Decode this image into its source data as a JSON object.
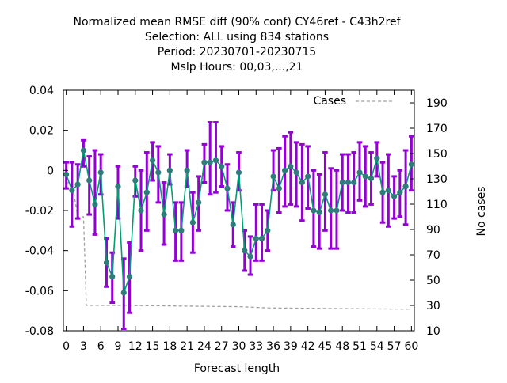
{
  "chart_data": {
    "type": "line",
    "title_lines": [
      "Normalized mean RMSE diff (90% conf) CY46ref - C43h2ref",
      "Selection: ALL using   834 stations",
      "Period: 20230701-20230715",
      "Mslp   Hours:  00,03,...,21"
    ],
    "xlabel": "Forecast length",
    "ylabel_right": "No cases",
    "xlim": [
      -0.5,
      60.5
    ],
    "ylim": [
      -0.08,
      0.04
    ],
    "y2lim": [
      10,
      200
    ],
    "x_ticks": [
      0,
      3,
      6,
      9,
      12,
      15,
      18,
      21,
      24,
      27,
      30,
      33,
      36,
      39,
      42,
      45,
      48,
      51,
      54,
      57,
      60
    ],
    "y_ticks": [
      -0.08,
      -0.06,
      -0.04,
      -0.02,
      0,
      0.02,
      0.04
    ],
    "y_tick_labels": [
      "-0.08",
      "-0.06",
      "-0.04",
      "-0.02",
      "0",
      "0.02",
      "0.04"
    ],
    "y2_ticks": [
      10,
      30,
      50,
      70,
      90,
      110,
      130,
      150,
      170,
      190
    ],
    "legend": {
      "label": "Cases",
      "position": "top-right"
    },
    "colors": {
      "errorbar": "#9400d3",
      "line": "#009e73",
      "marker": "#2e7d7a",
      "cases": "#a0a0a0"
    },
    "series": [
      {
        "x": [
          0,
          1,
          2,
          3,
          4,
          5,
          6,
          7,
          8,
          9,
          10,
          11,
          12,
          13,
          14,
          15,
          16,
          17,
          18,
          19,
          20,
          21,
          22,
          23,
          24,
          25,
          26,
          27,
          28,
          29,
          30,
          31,
          32,
          33,
          34,
          35,
          36,
          37,
          38,
          39,
          40,
          41,
          42,
          43,
          44,
          45,
          46,
          47,
          48,
          49,
          50,
          51,
          52,
          53,
          54,
          55,
          56,
          57,
          58,
          59,
          60
        ],
        "y": [
          -0.002,
          -0.01,
          -0.007,
          0.01,
          -0.005,
          -0.017,
          -0.001,
          -0.046,
          -0.053,
          -0.008,
          -0.061,
          -0.053,
          -0.005,
          -0.02,
          -0.011,
          0.005,
          -0.001,
          -0.022,
          0,
          -0.03,
          -0.03,
          0,
          -0.026,
          -0.016,
          0.004,
          0.004,
          0.005,
          0.002,
          -0.009,
          -0.027,
          -0.001,
          -0.04,
          -0.043,
          -0.034,
          -0.034,
          -0.03,
          -0.003,
          -0.009,
          0,
          0.002,
          -0.001,
          -0.006,
          -0.003,
          -0.02,
          -0.021,
          -0.012,
          -0.02,
          -0.02,
          -0.006,
          -0.006,
          -0.006,
          -0.001,
          -0.003,
          -0.004,
          0.006,
          -0.011,
          -0.01,
          -0.013,
          -0.011,
          -0.008,
          0.003
        ],
        "err_low": [
          -0.009,
          -0.028,
          -0.024,
          0.002,
          -0.022,
          -0.032,
          -0.012,
          -0.058,
          -0.066,
          -0.024,
          -0.079,
          -0.071,
          -0.013,
          -0.04,
          -0.03,
          -0.005,
          -0.016,
          -0.037,
          -0.007,
          -0.045,
          -0.045,
          -0.008,
          -0.041,
          -0.03,
          -0.006,
          -0.012,
          -0.011,
          -0.008,
          -0.02,
          -0.038,
          -0.01,
          -0.05,
          -0.052,
          -0.045,
          -0.045,
          -0.04,
          -0.01,
          -0.021,
          -0.018,
          -0.017,
          -0.018,
          -0.025,
          -0.019,
          -0.038,
          -0.039,
          -0.03,
          -0.039,
          -0.039,
          -0.02,
          -0.021,
          -0.021,
          -0.015,
          -0.018,
          -0.017,
          -0.003,
          -0.026,
          -0.028,
          -0.024,
          -0.023,
          -0.027,
          -0.01
        ],
        "err_high": [
          0.004,
          0.004,
          0.003,
          0.015,
          0.007,
          0.01,
          0.008,
          -0.034,
          -0.041,
          0.002,
          -0.044,
          -0.036,
          0.002,
          0,
          0.009,
          0.014,
          0.012,
          -0.006,
          0.008,
          -0.016,
          -0.016,
          0.01,
          -0.011,
          -0.003,
          0.013,
          0.024,
          0.024,
          0.012,
          0.003,
          -0.016,
          0.009,
          -0.03,
          -0.033,
          -0.017,
          -0.017,
          -0.02,
          0.01,
          0.011,
          0.017,
          0.019,
          0.014,
          0.013,
          0.012,
          0,
          -0.002,
          0.009,
          0.001,
          0,
          0.008,
          0.008,
          0.009,
          0.014,
          0.012,
          0.009,
          0.014,
          0.004,
          0.008,
          -0.003,
          0,
          0.01,
          0.017
        ]
      },
      {
        "name": "Cases",
        "axis": "right",
        "x": [
          0,
          1,
          2,
          3,
          3.5,
          10,
          30,
          35,
          60
        ],
        "y": [
          127,
          127,
          100,
          100,
          30,
          30,
          29,
          28,
          27
        ]
      }
    ]
  }
}
